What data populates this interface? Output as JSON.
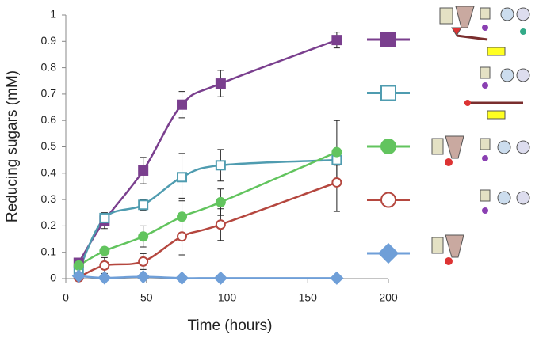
{
  "chart_data": {
    "type": "line",
    "x_label": "Time (hours)",
    "y_label": "Reducing sugars (mM)",
    "x": [
      8,
      24,
      48,
      72,
      96,
      168
    ],
    "xlim": [
      0,
      200
    ],
    "xticks": [
      0,
      50,
      100,
      150,
      200
    ],
    "ylim": [
      0,
      1
    ],
    "yticks": [
      0,
      0.1,
      0.2,
      0.3,
      0.4,
      0.5,
      0.6,
      0.7,
      0.8,
      0.9,
      1
    ],
    "grid": false,
    "legend": "right",
    "smooth": true,
    "series": [
      {
        "color": "#7a3f8e",
        "marker": "square",
        "filled": true,
        "values": [
          0.06,
          0.22,
          0.41,
          0.66,
          0.74,
          0.905
        ],
        "errors": [
          0.01,
          0.03,
          0.05,
          0.05,
          0.05,
          0.03
        ]
      },
      {
        "color": "#4f9cb0",
        "marker": "square",
        "filled": false,
        "values": [
          0.03,
          0.23,
          0.28,
          0.385,
          0.43,
          0.45
        ],
        "errors": [
          0.01,
          0.02,
          0.02,
          0.09,
          0.06,
          0.02
        ]
      },
      {
        "color": "#62c45e",
        "marker": "circle",
        "filled": true,
        "values": [
          0.05,
          0.105,
          0.16,
          0.235,
          0.29,
          0.48
        ],
        "errors": [
          0.01,
          0.01,
          0.04,
          0.07,
          0.05,
          0.12
        ]
      },
      {
        "color": "#b5473f",
        "marker": "circle",
        "filled": false,
        "values": [
          0.005,
          0.05,
          0.065,
          0.16,
          0.205,
          0.365
        ],
        "errors": [
          0.005,
          0.03,
          0.03,
          0.07,
          0.06,
          0.11
        ]
      },
      {
        "color": "#6f9fd8",
        "marker": "diamond",
        "filled": true,
        "values": [
          0.01,
          0.003,
          0.007,
          0.002,
          0.002,
          0.002
        ]
      }
    ]
  }
}
